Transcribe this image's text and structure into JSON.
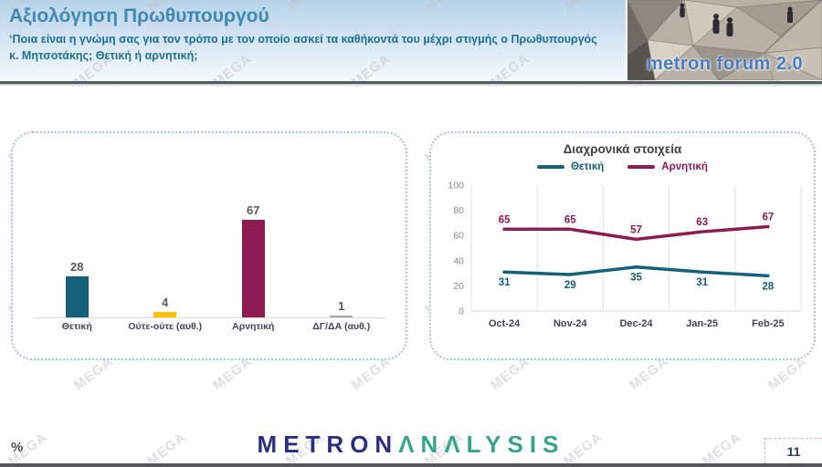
{
  "header": {
    "title": "Αξιολόγηση Πρωθυπουργού",
    "subtitle": "‘Ποια είναι η γνώμη σας για τον τρόπο με τον οποίο ασκεί τα καθήκοντά του μέχρι στιγμής ο Πρωθυπουργός κ. Μητσοτάκης; Θετική ή αρνητική;",
    "photo_caption": "metron forum 2.0"
  },
  "watermark": {
    "text": "MEGA"
  },
  "chart_data": [
    {
      "type": "bar",
      "title": "",
      "categories": [
        "Θετική",
        "Ούτε-ούτε (αυθ.)",
        "Αρνητική",
        "ΔΓ/ΔΑ (αυθ.)"
      ],
      "values": [
        28,
        4,
        67,
        1
      ],
      "colors": [
        "#176079",
        "#FFC000",
        "#8E1C52",
        "#A6A6A6"
      ],
      "ylim": [
        0,
        100
      ],
      "grid": "off",
      "value_labels": "above-bars"
    },
    {
      "type": "line",
      "title": "Διαχρονικά στοιχεία",
      "categories": [
        "Oct-24",
        "Nov-24",
        "Dec-24",
        "Jan-25",
        "Feb-25"
      ],
      "series": [
        {
          "name": "Θετική",
          "color": "#176079",
          "values": [
            31,
            29,
            35,
            31,
            28
          ],
          "label_position": "below"
        },
        {
          "name": "Αρνητική",
          "color": "#8E1C52",
          "values": [
            65,
            65,
            57,
            63,
            67
          ],
          "label_position": "above"
        }
      ],
      "yticks": [
        0,
        20,
        40,
        60,
        80,
        100
      ],
      "ylim": [
        0,
        100
      ],
      "legend_position": "top",
      "grid": "vertical"
    }
  ],
  "footer": {
    "percent_label": "%",
    "logo_part1": "METRON",
    "logo_part2": "ΛNΛLYSIS",
    "page_number": "11"
  }
}
